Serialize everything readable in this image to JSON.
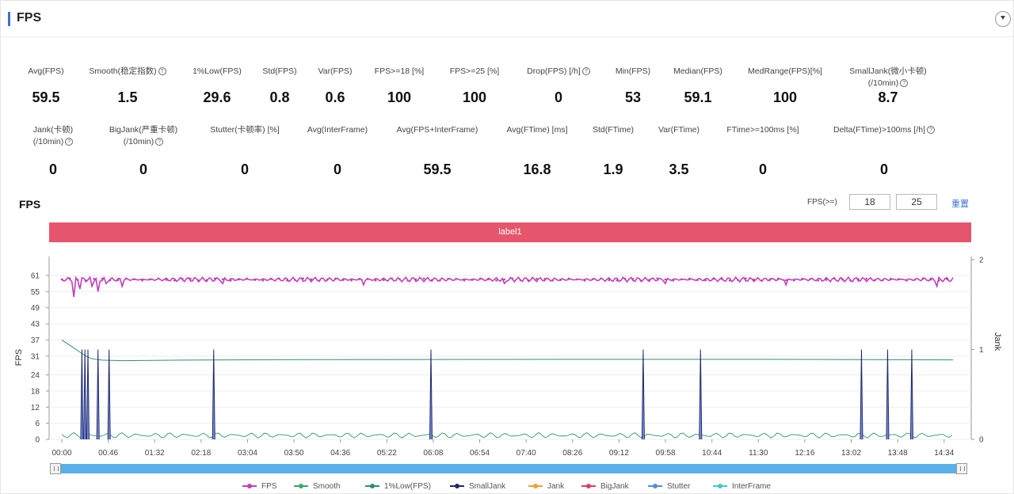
{
  "panel": {
    "title": "FPS"
  },
  "metrics_row1": [
    {
      "label": "Avg(FPS)",
      "value": "59.5",
      "help": false
    },
    {
      "label": "Smooth(稳定指数)",
      "value": "1.5",
      "help": true
    },
    {
      "label": "1%Low(FPS)",
      "value": "29.6",
      "help": false
    },
    {
      "label": "Std(FPS)",
      "value": "0.8",
      "help": false
    },
    {
      "label": "Var(FPS)",
      "value": "0.6",
      "help": false
    },
    {
      "label": "FPS>=18 [%]",
      "value": "100",
      "help": false
    },
    {
      "label": "FPS>=25 [%]",
      "value": "100",
      "help": false
    },
    {
      "label": "Drop(FPS) [/h]",
      "value": "0",
      "help": true
    },
    {
      "label": "Min(FPS)",
      "value": "53",
      "help": false
    },
    {
      "label": "Median(FPS)",
      "value": "59.1",
      "help": false
    },
    {
      "label": "MedRange(FPS)[%]",
      "value": "100",
      "help": false
    },
    {
      "label": "SmallJank(微小卡顿)",
      "label2": "(/10min)",
      "value": "8.7",
      "help": true
    }
  ],
  "metrics_row2": [
    {
      "label": "Jank(卡顿)",
      "label2": "(/10min)",
      "value": "0",
      "help": true
    },
    {
      "label": "BigJank(严重卡顿)",
      "label2": "(/10min)",
      "value": "0",
      "help": true
    },
    {
      "label": "Stutter(卡顿率) [%]",
      "value": "0",
      "help": false
    },
    {
      "label": "Avg(InterFrame)",
      "value": "0",
      "help": false
    },
    {
      "label": "Avg(FPS+InterFrame)",
      "value": "59.5",
      "help": false
    },
    {
      "label": "Avg(FTime) [ms]",
      "value": "16.8",
      "help": false
    },
    {
      "label": "Std(FTime)",
      "value": "1.9",
      "help": false
    },
    {
      "label": "Var(FTime)",
      "value": "3.5",
      "help": false
    },
    {
      "label": "FTime>=100ms [%]",
      "value": "0",
      "help": false
    },
    {
      "label": "Delta(FTime)>100ms [/h]",
      "value": "0",
      "help": true
    }
  ],
  "chart_header": {
    "title": "FPS",
    "threshold_label": "FPS(>=)",
    "threshold1": "18",
    "threshold2": "25",
    "reset_label": "重置"
  },
  "label_bar": "label1",
  "chart_data": {
    "type": "line",
    "ylabel": "FPS",
    "y2label": "Jank",
    "y_ticks": [
      "61",
      "55",
      "49",
      "43",
      "37",
      "31",
      "24",
      "18",
      "12",
      "6",
      "0"
    ],
    "ylim": [
      0,
      61
    ],
    "y2_ticks": [
      "2",
      "1",
      "0"
    ],
    "y2lim": [
      0,
      2
    ],
    "x_ticks": [
      "00:00",
      "00:46",
      "01:32",
      "02:18",
      "03:04",
      "03:50",
      "04:36",
      "05:22",
      "06:08",
      "06:54",
      "07:40",
      "08:26",
      "09:12",
      "09:58",
      "10:44",
      "11:30",
      "12:16",
      "13:02",
      "13:48",
      "14:34"
    ],
    "x_range_seconds": [
      0,
      886
    ],
    "series": [
      {
        "name": "FPS",
        "color": "#c23fb8",
        "typical": 59.5,
        "dips": [
          [
            12,
            53
          ],
          [
            18,
            56
          ],
          [
            30,
            57
          ],
          [
            36,
            55
          ],
          [
            44,
            58
          ],
          [
            60,
            57
          ],
          [
            160,
            58
          ],
          [
            300,
            57.5
          ],
          [
            440,
            58
          ],
          [
            600,
            58
          ],
          [
            720,
            57.5
          ],
          [
            870,
            57
          ]
        ]
      },
      {
        "name": "Smooth",
        "color": "#3fa66a",
        "typical": 1.5
      },
      {
        "name": "1%Low(FPS)",
        "color": "#2e8c7a",
        "points": [
          [
            0,
            37
          ],
          [
            8,
            35
          ],
          [
            16,
            33
          ],
          [
            24,
            31
          ],
          [
            30,
            30
          ],
          [
            40,
            29.5
          ],
          [
            60,
            29.3
          ],
          [
            120,
            29.5
          ],
          [
            250,
            29.7
          ],
          [
            500,
            29.8
          ],
          [
            700,
            29.8
          ],
          [
            886,
            29.6
          ]
        ]
      },
      {
        "name": "SmallJank",
        "color": "#1f2a6b",
        "spikes": [
          20,
          23,
          26,
          36,
          47,
          151,
          367,
          578,
          635,
          795,
          821,
          845
        ]
      },
      {
        "name": "Jank",
        "color": "#f0a030",
        "values": []
      },
      {
        "name": "BigJank",
        "color": "#d94060",
        "values": []
      },
      {
        "name": "Stutter",
        "color": "#5a8bd6",
        "values": []
      },
      {
        "name": "InterFrame",
        "color": "#43c6c6",
        "values": []
      }
    ],
    "legend_position": "bottom",
    "grid": "horizontal"
  }
}
